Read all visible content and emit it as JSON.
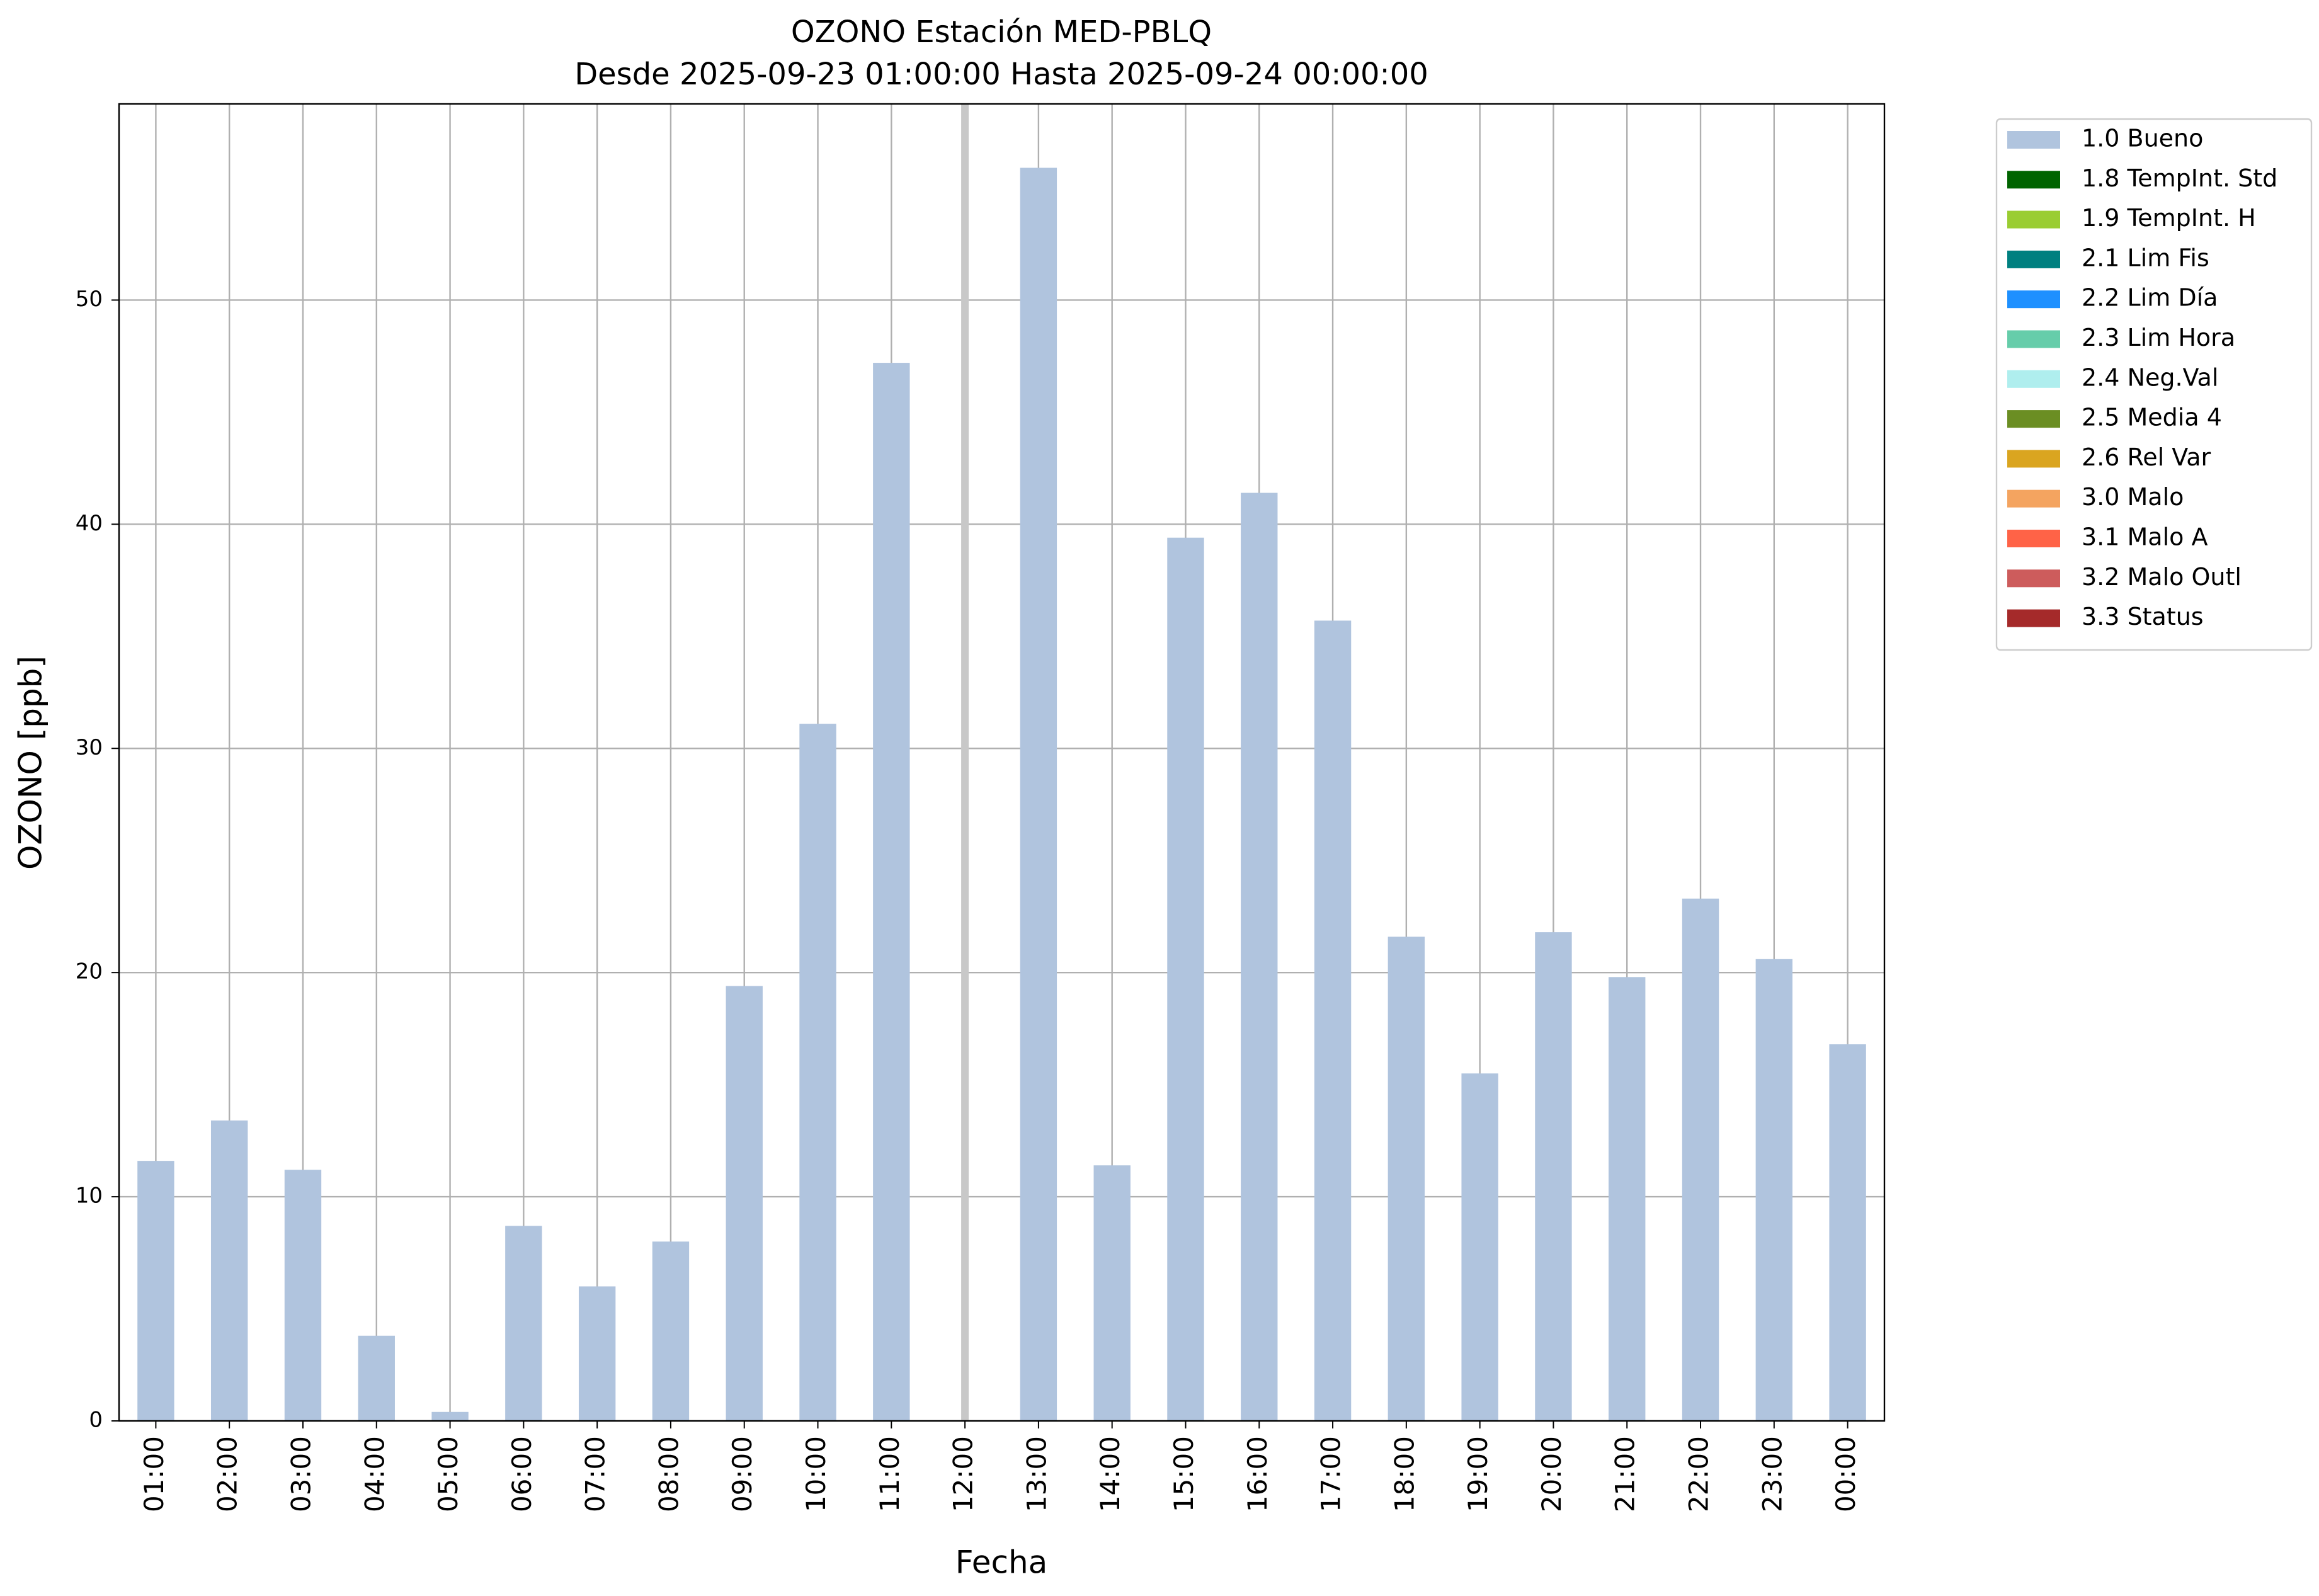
{
  "chart_data": {
    "type": "bar",
    "title": "OZONO Estación MED-PBLQ",
    "subtitle": "Desde 2025-09-23 01:00:00 Hasta 2025-09-24 00:00:00",
    "x_label": "Fecha",
    "y_label": "OZONO [ppb]",
    "categories": [
      "01:00",
      "02:00",
      "03:00",
      "04:00",
      "05:00",
      "06:00",
      "07:00",
      "08:00",
      "09:00",
      "10:00",
      "11:00",
      "12:00",
      "13:00",
      "14:00",
      "15:00",
      "16:00",
      "17:00",
      "18:00",
      "19:00",
      "20:00",
      "21:00",
      "22:00",
      "23:00",
      "00:00"
    ],
    "series": [
      {
        "name": "1.0 Bueno",
        "color": "#b0c4de",
        "values": [
          11.6,
          13.4,
          11.2,
          3.8,
          0.4,
          8.7,
          6.0,
          8.0,
          19.4,
          31.1,
          47.2,
          null,
          55.9,
          11.4,
          39.4,
          41.4,
          35.7,
          21.6,
          15.5,
          21.8,
          19.8,
          23.3,
          20.6,
          16.8
        ]
      }
    ],
    "flag_legend": [
      {
        "name": "1.8 TempInt. Std",
        "color": "#006400"
      },
      {
        "name": "1.9 TempInt. H",
        "color": "#9acd32"
      },
      {
        "name": "2.1 Lim Fis",
        "color": "#008080"
      },
      {
        "name": "2.2 Lim Día",
        "color": "#1e90ff"
      },
      {
        "name": "2.3 Lim Hora",
        "color": "#66cdaa"
      },
      {
        "name": "2.4 Neg.Val",
        "color": "#afeeee"
      },
      {
        "name": "2.5 Media 4",
        "color": "#6b8e23"
      },
      {
        "name": "2.6 Rel Var",
        "color": "#daa520"
      },
      {
        "name": "3.0 Malo",
        "color": "#f4a460"
      },
      {
        "name": "3.1 Malo A",
        "color": "#ff6347"
      },
      {
        "name": "3.2 Malo Outl",
        "color": "#cd5c5c"
      },
      {
        "name": "3.3 Status",
        "color": "#a52a2a"
      }
    ],
    "ylim": [
      0,
      58.75
    ],
    "yticks": [
      0,
      10,
      20,
      30,
      40,
      50
    ],
    "grid": true,
    "legend_position": "outside-right"
  }
}
